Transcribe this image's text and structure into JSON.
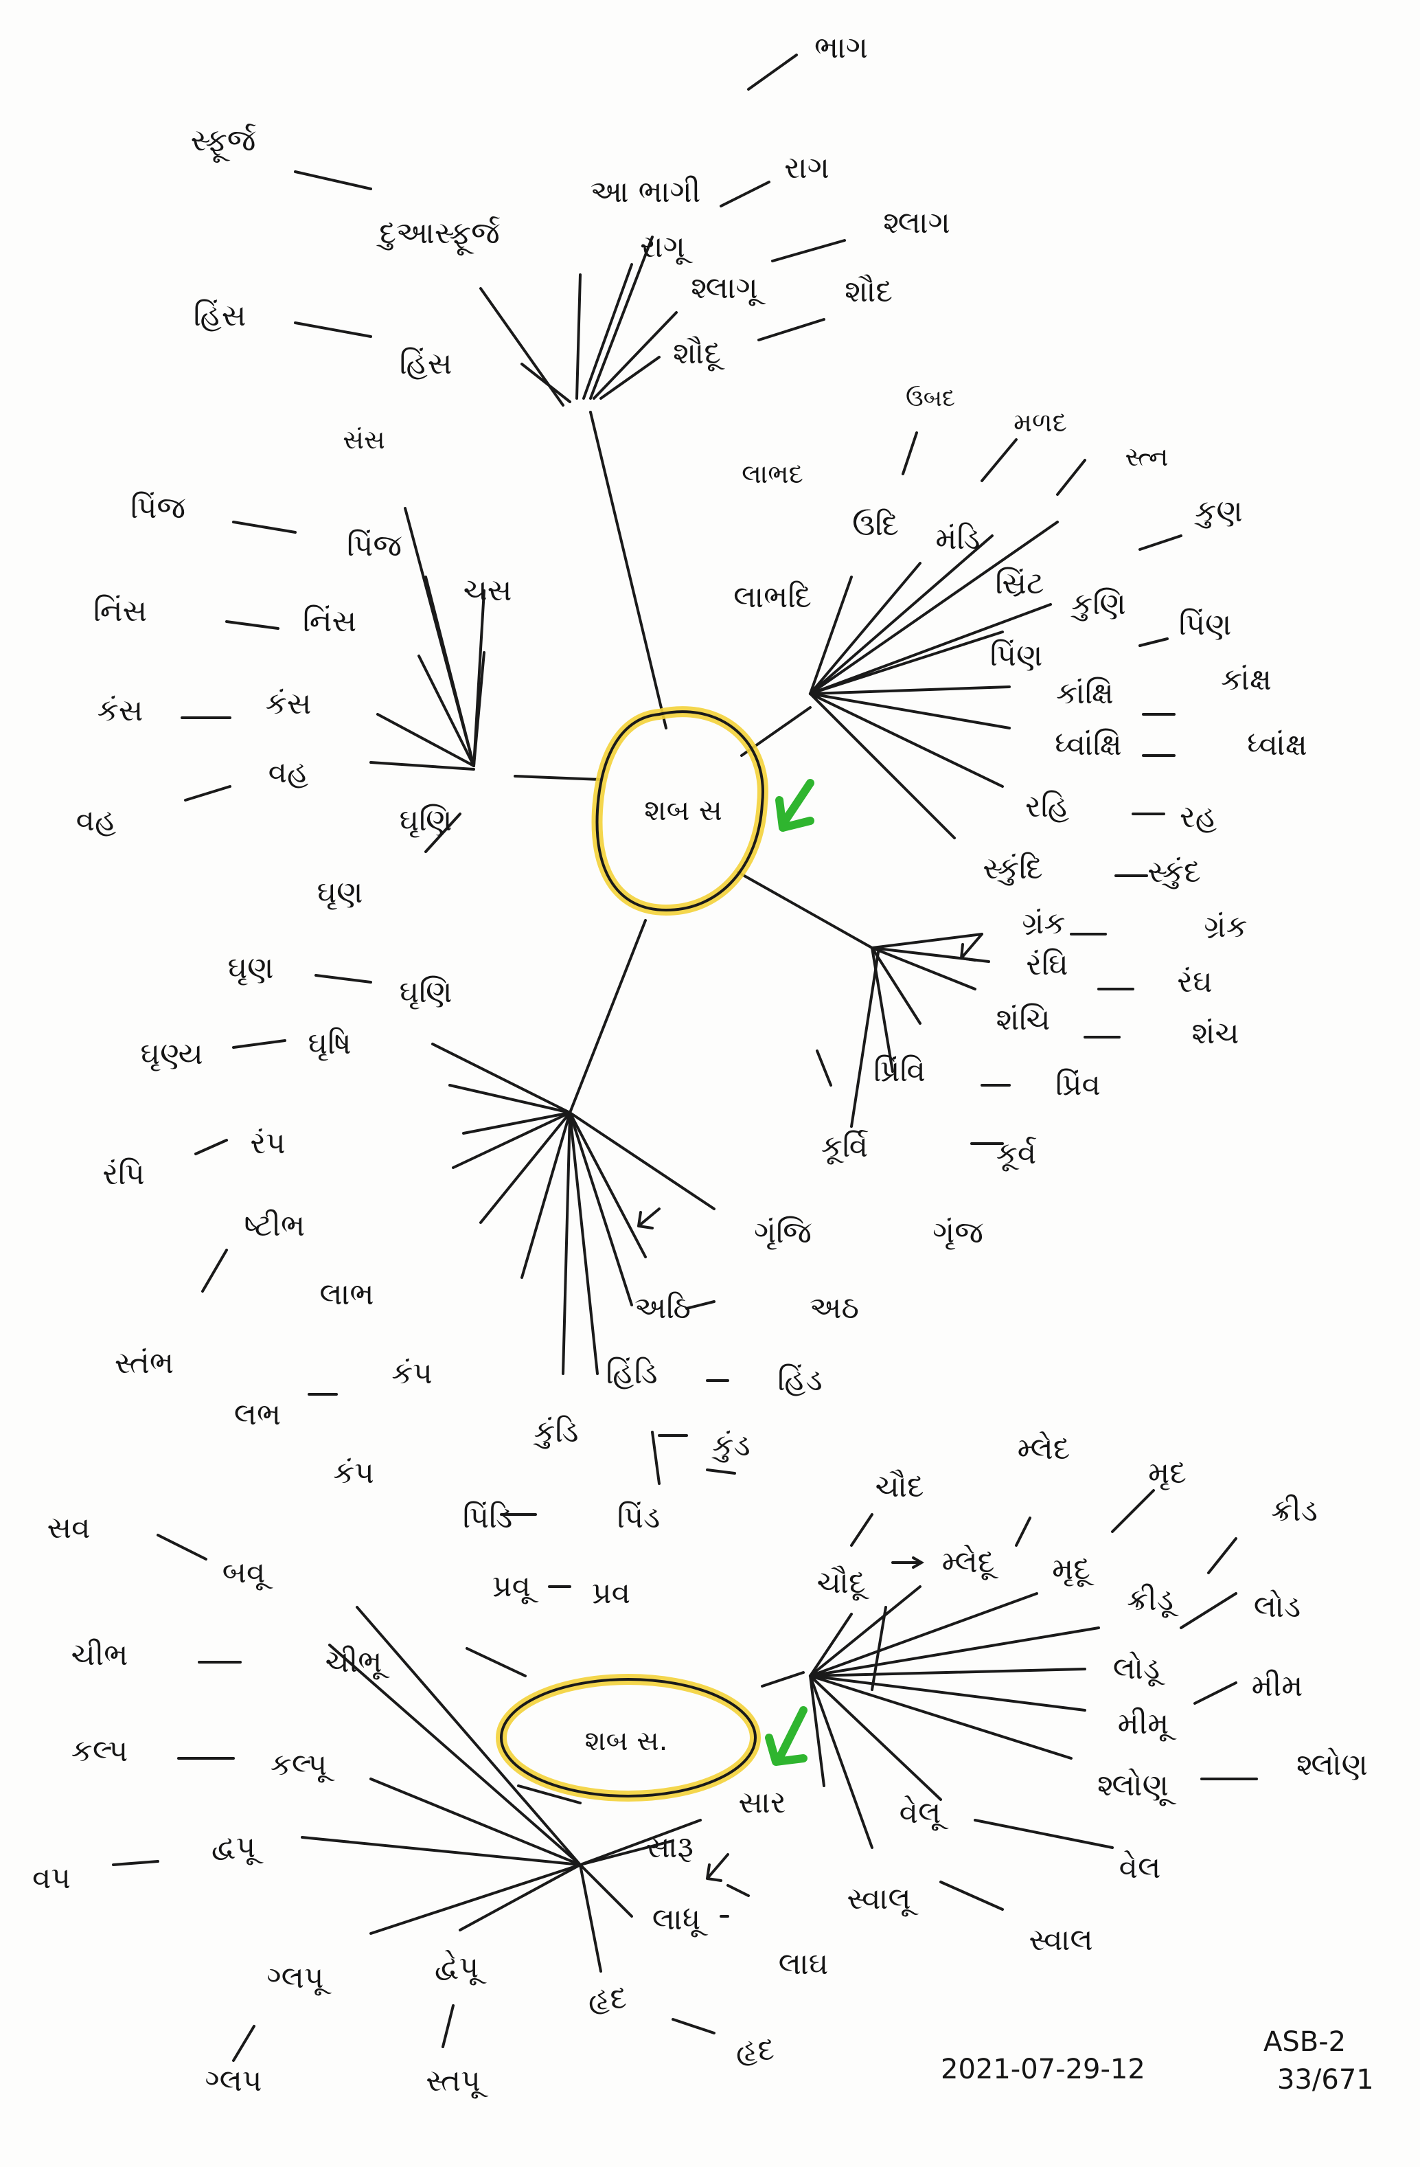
{
  "hub_top": {
    "label": "શબ સ",
    "ring_color": "#f3d23a",
    "arrow_color": "#2fb52f"
  },
  "hub_bottom": {
    "label": "શબ સ.",
    "ring_color": "#f3d23a",
    "arrow_color": "#2fb52f"
  },
  "words": {
    "w1": "ભાગ",
    "w2": "આ ભાગી",
    "w3": "રાગ",
    "w4": "સ્ફૂર્જ",
    "w5": "દુઆસ્ફૂર્જ",
    "w6": "રાગૂ",
    "w7": "શ્લાગ",
    "w8": "શ્લાગૂ",
    "w9": "શૌદ",
    "w10": "શૌદૂ",
    "w11": "હિંસ",
    "w12": "હિંસ",
    "w13": "સંસ",
    "w14": "લાભદ",
    "w15": "ઉબદ",
    "w16": "મળદ",
    "w17": "સ્ત્ન",
    "w18": "પિંજ",
    "w19": "પિંજ",
    "w20": "ઉદિ",
    "w21": "મંડિ",
    "w22": "સ્રિંટ",
    "w23": "કુણ",
    "w24": "નિંસ",
    "w25": "નિંસ",
    "w26": "ચસ",
    "w27": "લાભદિ",
    "w28": "કુણિ",
    "w29": "પિંણ",
    "w30": "પિંણ",
    "w31": "કંસ",
    "w32": "કંસ",
    "w33": "કાંક્ષિ",
    "w34": "કાંક્ષ",
    "w35": "ધ્વાંક્ષિ",
    "w36": "ધ્વાંક્ષ",
    "w37": "વહ",
    "w38": "વહ",
    "w39": "રહિ",
    "w40": "રહ",
    "w41": "ઘૃણિ",
    "w42": "ઘૃણ",
    "w43": "સ્કુંદિ",
    "w44": "સ્કુંદ",
    "w45": "ગ્રંક",
    "w46": "ગ્રંક",
    "w47": "ઘૃણ",
    "w48": "ઘૃણિ",
    "w49": "રંઘિ",
    "w50": "રંઘ",
    "w51": "ઘૃણ્ય",
    "w52": "ઘૃષિ",
    "w53": "શંચિ",
    "w54": "શંચ",
    "w55": "રંપિ",
    "w56": "રંપ",
    "w57": "પ્રિંવિ",
    "w58": "પ્રિંવ",
    "w59": "ષ્ટીભ",
    "w60": "કૂર્વિ",
    "w61": "કૂર્વ",
    "w62": "ગૃંજિ",
    "w63": "ગૃંજ",
    "w64": "સ્તંભ",
    "w65": "લાભ",
    "w66": "અઠિ",
    "w67": "અઠ",
    "w68": "લભ",
    "w69": "કંપ",
    "w70": "હિંડિ",
    "w71": "હિંડ",
    "w72": "કુંડિ",
    "w73": "કુંડ",
    "w74": "કંપ",
    "w75": "પિંડિ",
    "w76": "પિંડ",
    "w77": "ચૌદ",
    "w78": "મ્લેદ",
    "w79": "મૃદ",
    "w80": "ક્રીડ",
    "w81": "સવ",
    "w82": "બવૂ",
    "w83": "પ્રવૂ",
    "w84": "પ્રવ",
    "w85": "ચૌદૂ",
    "w86": "મ્લેદૂ",
    "w87": "મૃદૂ",
    "w88": "ક્રીડૂ",
    "w89": "લોડ",
    "w90": "ચીભ",
    "w91": "ચીભૂ",
    "w92": "લોડૂ",
    "w93": "મીમ",
    "w94": "મીમૂ",
    "w95": "કલ્પ",
    "w96": "કલ્પૂ",
    "w97": "શ્લોણ",
    "w98": "શ્લોણૂ",
    "w99": "વપ",
    "w100": "દ્વપૂ",
    "w101": "સાર",
    "w102": "સારૂ",
    "w103": "વેલૂ",
    "w104": "વેલ",
    "w105": "ગ્લપૂ",
    "w106": "દ્વેપૂ",
    "w107": "લાધૂ",
    "w108": "લાઘ",
    "w109": "સ્વાલૂ",
    "w110": "સ્વાલ",
    "w111": "હૃદ",
    "w112": "હૃદ",
    "w113": "ગ્લપ",
    "w114": "સ્તપૂ"
  },
  "footer": {
    "date": "2021-07-29-12",
    "code": "ASB-2",
    "page": "33/671"
  }
}
